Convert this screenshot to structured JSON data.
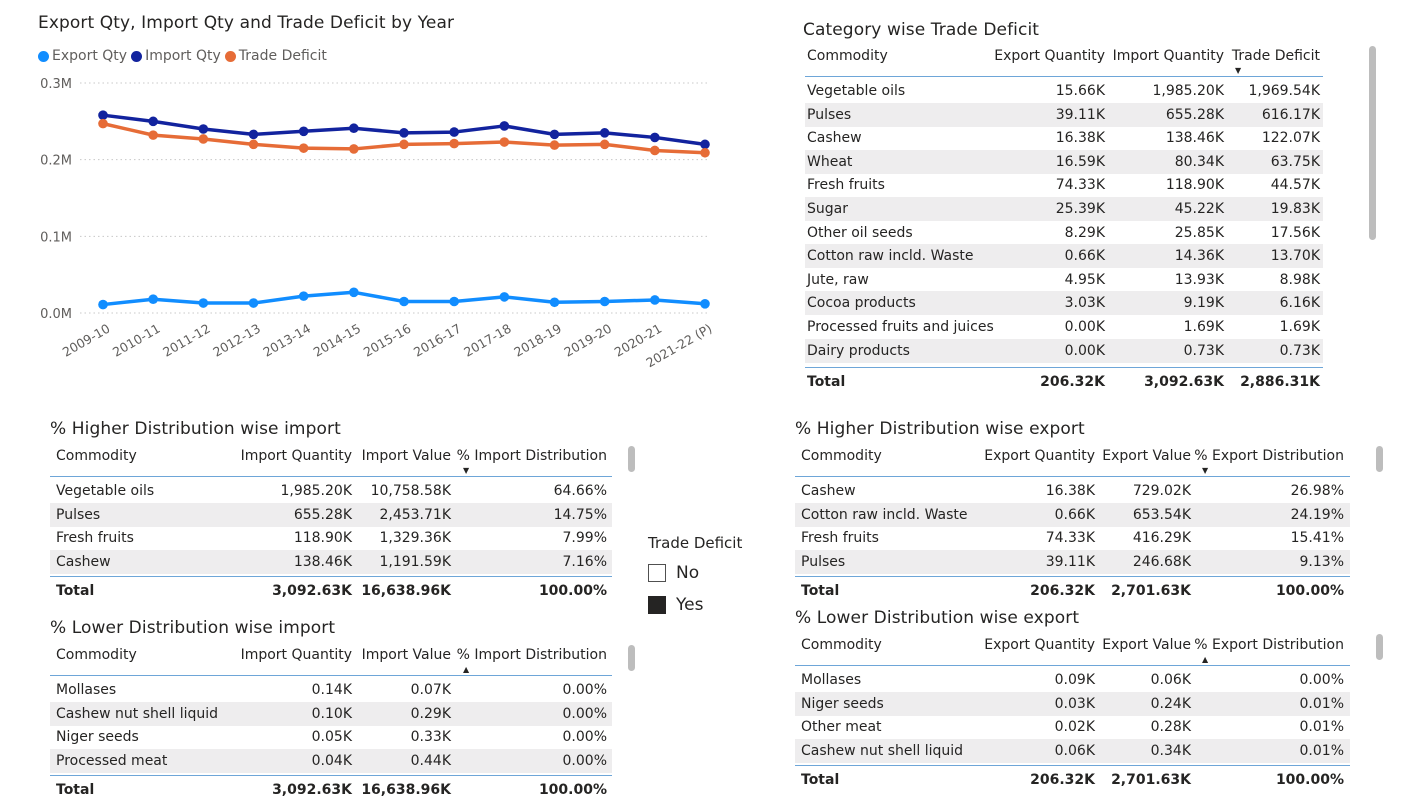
{
  "chart": {
    "title": "Export Qty, Import Qty and Trade Deficit by Year",
    "legend": [
      {
        "label": "Export Qty",
        "color": "#118dff"
      },
      {
        "label": "Import Qty",
        "color": "#12239e"
      },
      {
        "label": "Trade Deficit",
        "color": "#e66c37"
      }
    ]
  },
  "chart_data": {
    "type": "line",
    "title": "Export Qty, Import Qty and Trade Deficit by Year",
    "x": [
      "2009-10",
      "2010-11",
      "2011-12",
      "2012-13",
      "2013-14",
      "2014-15",
      "2015-16",
      "2016-17",
      "2017-18",
      "2018-19",
      "2019-20",
      "2020-21",
      "2021-22 (P)"
    ],
    "y_ticks": [
      {
        "value": 0,
        "label": "0.0M"
      },
      {
        "value": 0.1,
        "label": "0.1M"
      },
      {
        "value": 0.2,
        "label": "0.2M"
      },
      {
        "value": 0.3,
        "label": "0.3M"
      }
    ],
    "ylim": [
      0,
      0.3
    ],
    "grid": true,
    "legend_position": "top-left",
    "series": [
      {
        "name": "Export Qty",
        "color": "#118dff",
        "values": [
          0.011,
          0.018,
          0.013,
          0.013,
          0.022,
          0.027,
          0.015,
          0.015,
          0.021,
          0.014,
          0.015,
          0.017,
          0.012
        ]
      },
      {
        "name": "Import Qty",
        "color": "#12239e",
        "values": [
          0.258,
          0.25,
          0.24,
          0.233,
          0.237,
          0.241,
          0.235,
          0.236,
          0.244,
          0.233,
          0.235,
          0.229,
          0.22
        ]
      },
      {
        "name": "Trade Deficit",
        "color": "#e66c37",
        "values": [
          0.247,
          0.232,
          0.227,
          0.22,
          0.215,
          0.214,
          0.22,
          0.221,
          0.223,
          0.219,
          0.22,
          0.212,
          0.209
        ]
      }
    ]
  },
  "category_table": {
    "title": "Category wise Trade Deficit",
    "columns": [
      "Commodity",
      "Export Quantity",
      "Import Quantity",
      "Trade Deficit"
    ],
    "rows": [
      [
        "Vegetable oils",
        "15.66K",
        "1,985.20K",
        "1,969.54K"
      ],
      [
        "Pulses",
        "39.11K",
        "655.28K",
        "616.17K"
      ],
      [
        "Cashew",
        "16.38K",
        "138.46K",
        "122.07K"
      ],
      [
        "Wheat",
        "16.59K",
        "80.34K",
        "63.75K"
      ],
      [
        "Fresh fruits",
        "74.33K",
        "118.90K",
        "44.57K"
      ],
      [
        "Sugar",
        "25.39K",
        "45.22K",
        "19.83K"
      ],
      [
        "Other oil seeds",
        "8.29K",
        "25.85K",
        "17.56K"
      ],
      [
        "Cotton raw incld. Waste",
        "0.66K",
        "14.36K",
        "13.70K"
      ],
      [
        "Jute, raw",
        "4.95K",
        "13.93K",
        "8.98K"
      ],
      [
        "Cocoa products",
        "3.03K",
        "9.19K",
        "6.16K"
      ],
      [
        "Processed fruits and juices",
        "0.00K",
        "1.69K",
        "1.69K"
      ],
      [
        "Dairy products",
        "0.00K",
        "0.73K",
        "0.73K"
      ]
    ],
    "total": [
      "Total",
      "206.32K",
      "3,092.63K",
      "2,886.31K"
    ]
  },
  "higher_import": {
    "title": "% Higher Distribution wise import",
    "columns": [
      "Commodity",
      "Import Quantity",
      "Import Value",
      "% Import Distribution"
    ],
    "rows": [
      [
        "Vegetable oils",
        "1,985.20K",
        "10,758.58K",
        "64.66%"
      ],
      [
        "Pulses",
        "655.28K",
        "2,453.71K",
        "14.75%"
      ],
      [
        "Fresh fruits",
        "118.90K",
        "1,329.36K",
        "7.99%"
      ],
      [
        "Cashew",
        "138.46K",
        "1,191.59K",
        "7.16%"
      ]
    ],
    "total": [
      "Total",
      "3,092.63K",
      "16,638.96K",
      "100.00%"
    ]
  },
  "lower_import": {
    "title": "% Lower Distribution wise import",
    "columns": [
      "Commodity",
      "Import Quantity",
      "Import Value",
      "% Import Distribution"
    ],
    "rows": [
      [
        "Mollases",
        "0.14K",
        "0.07K",
        "0.00%"
      ],
      [
        "Cashew nut shell liquid",
        "0.10K",
        "0.29K",
        "0.00%"
      ],
      [
        "Niger seeds",
        "0.05K",
        "0.33K",
        "0.00%"
      ],
      [
        "Processed meat",
        "0.04K",
        "0.44K",
        "0.00%"
      ]
    ],
    "total": [
      "Total",
      "3,092.63K",
      "16,638.96K",
      "100.00%"
    ]
  },
  "higher_export": {
    "title": "% Higher Distribution wise export",
    "columns": [
      "Commodity",
      "Export Quantity",
      "Export Value",
      "% Export Distribution"
    ],
    "rows": [
      [
        "Cashew",
        "16.38K",
        "729.02K",
        "26.98%"
      ],
      [
        "Cotton raw incld. Waste",
        "0.66K",
        "653.54K",
        "24.19%"
      ],
      [
        "Fresh fruits",
        "74.33K",
        "416.29K",
        "15.41%"
      ],
      [
        "Pulses",
        "39.11K",
        "246.68K",
        "9.13%"
      ]
    ],
    "total": [
      "Total",
      "206.32K",
      "2,701.63K",
      "100.00%"
    ]
  },
  "lower_export": {
    "title": "% Lower Distribution wise export",
    "columns": [
      "Commodity",
      "Export Quantity",
      "Export Value",
      "% Export Distribution"
    ],
    "rows": [
      [
        "Mollases",
        "0.09K",
        "0.06K",
        "0.00%"
      ],
      [
        "Niger seeds",
        "0.03K",
        "0.24K",
        "0.01%"
      ],
      [
        "Other meat",
        "0.02K",
        "0.28K",
        "0.01%"
      ],
      [
        "Cashew nut shell liquid",
        "0.06K",
        "0.34K",
        "0.01%"
      ]
    ],
    "total": [
      "Total",
      "206.32K",
      "2,701.63K",
      "100.00%"
    ]
  },
  "slicer": {
    "title": "Trade Deficit",
    "options": [
      {
        "label": "No",
        "checked": false
      },
      {
        "label": "Yes",
        "checked": true
      }
    ]
  }
}
